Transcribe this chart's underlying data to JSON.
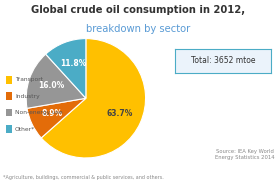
{
  "title_line1": "Global crude oil consumption in 2012,",
  "title_line2": "breakdown by sector",
  "subtitle_color": "#5a9bd5",
  "labels": [
    "Transport",
    "Industry",
    "Non-energy use",
    "Other*"
  ],
  "values": [
    63.7,
    8.9,
    16.0,
    11.8
  ],
  "pct_labels": [
    "63.7%",
    "8.9%",
    "16.0%",
    "11.8%"
  ],
  "colors": [
    "#FFC000",
    "#E36C09",
    "#969696",
    "#4BACC6"
  ],
  "pct_colors": [
    "#444444",
    "#ffffff",
    "#ffffff",
    "#ffffff"
  ],
  "startangle": 90,
  "total_label": "Total: 3652 mtoe",
  "source_text": "Source: IEA Key World\nEnergy Statistics 2014",
  "footnote": "*Agriculture, buildings, commercial & public services, and others.",
  "background_color": "#ffffff"
}
